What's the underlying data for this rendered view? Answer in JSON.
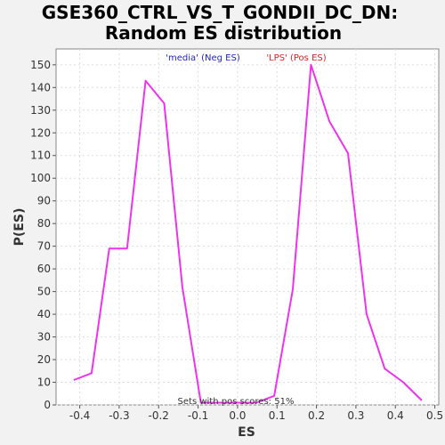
{
  "chart_data": {
    "type": "line",
    "title_lines": [
      "GSE360_CTRL_VS_T_GONDII_DC_DN:",
      "Random ES distribution"
    ],
    "xlabel": "ES",
    "ylabel": "P(ES)",
    "xlim": [
      -0.46,
      0.51
    ],
    "ylim": [
      0,
      157
    ],
    "xticks": [
      -0.4,
      -0.3,
      -0.2,
      -0.1,
      0.0,
      0.1,
      0.2,
      0.3,
      0.4,
      0.5
    ],
    "xtick_labels": [
      "-0.4",
      "-0.3",
      "-0.2",
      "-0.1",
      "0.0",
      "0.1",
      "0.2",
      "0.3",
      "0.4",
      "0.5"
    ],
    "yticks": [
      0,
      10,
      20,
      30,
      40,
      50,
      60,
      70,
      80,
      90,
      100,
      110,
      120,
      130,
      140,
      150
    ],
    "grid": true,
    "series": [
      {
        "color": "#ee33ee",
        "x": [
          -0.415,
          -0.37,
          -0.325,
          -0.28,
          -0.233,
          -0.186,
          -0.14,
          -0.093,
          -0.047,
          0.0,
          0.047,
          0.093,
          0.14,
          0.186,
          0.233,
          0.28,
          0.327,
          0.373,
          0.42,
          0.467
        ],
        "y": [
          11,
          14,
          69,
          69,
          143,
          133,
          52,
          1,
          1,
          1,
          1,
          4,
          51,
          150,
          125,
          111,
          40,
          16,
          10,
          2
        ]
      }
    ],
    "legend": [
      {
        "label": "'media' (Neg ES)",
        "color": "#2222cc"
      },
      {
        "label": "'LPS' (Pos ES)",
        "color": "#dd2222"
      }
    ],
    "annotation": "Sets with pos scores: 51%"
  }
}
